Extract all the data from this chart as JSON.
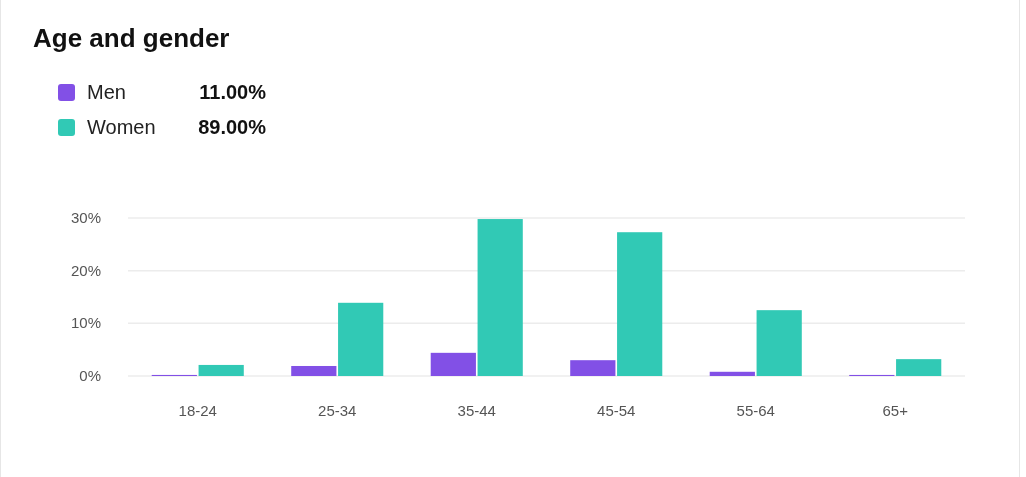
{
  "chart_data": {
    "type": "bar",
    "title": "Age and gender",
    "categories": [
      "18-24",
      "25-34",
      "35-44",
      "45-54",
      "55-64",
      "65+"
    ],
    "series": [
      {
        "name": "Men",
        "color": "#8250e6",
        "values": [
          0.2,
          1.9,
          4.4,
          3.0,
          0.8,
          0.2
        ]
      },
      {
        "name": "Women",
        "color": "#31c9b5",
        "values": [
          2.1,
          13.9,
          29.8,
          27.3,
          12.5,
          3.2
        ]
      }
    ],
    "annotations": [
      "11.00%",
      "89.00%"
    ],
    "ylim": [
      0,
      30
    ],
    "yticks": [
      {
        "value": 0,
        "label": "0%"
      },
      {
        "value": 10,
        "label": "10%"
      },
      {
        "value": 20,
        "label": "20%"
      },
      {
        "value": 30,
        "label": "30%"
      }
    ],
    "grid": "y",
    "legend": "top left"
  }
}
